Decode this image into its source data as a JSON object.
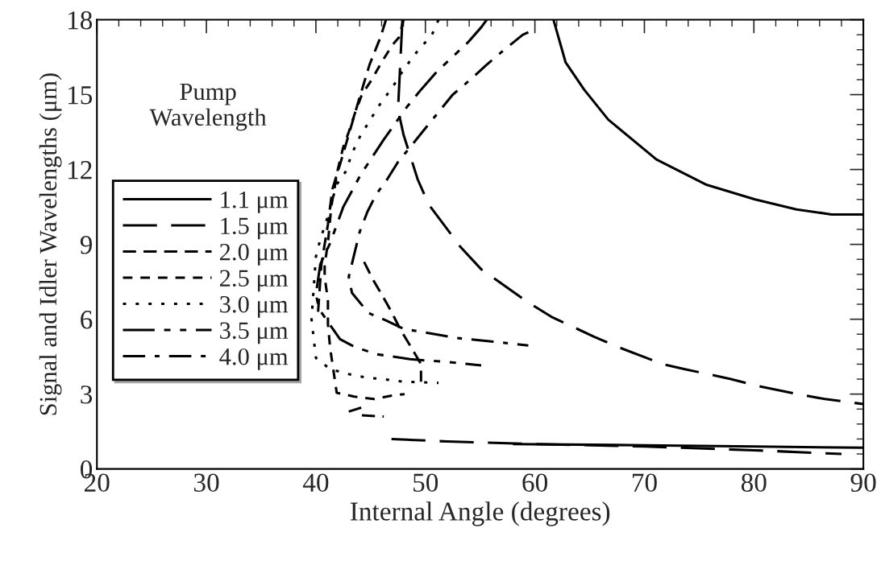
{
  "chart_data": {
    "type": "line",
    "xlabel": "Internal Angle (degrees)",
    "ylabel": "Signal and Idler Wavelengths (μm)",
    "legend_title": "Pump\nWavelength",
    "legend": "left",
    "xlim": [
      20,
      90
    ],
    "ylim": [
      0,
      18
    ],
    "xticks": [
      20,
      30,
      40,
      50,
      60,
      70,
      80,
      90
    ],
    "yticks": [
      0,
      3,
      6,
      9,
      12,
      15,
      18
    ],
    "grid": false,
    "marker": "none",
    "series": [
      {
        "name": "1.1 μm",
        "color": "#000000",
        "line_style": "solid",
        "x": [
          61.7,
          62.8,
          64.5,
          66.7,
          71.1,
          75.6,
          80.1,
          83.9,
          87.1,
          90,
          null,
          58,
          70,
          80,
          90
        ],
        "values": [
          18,
          16.3,
          15.2,
          14.0,
          12.4,
          11.4,
          10.8,
          10.4,
          10.2,
          10.2,
          null,
          1.0,
          0.95,
          0.9,
          0.85
        ]
      },
      {
        "name": "1.5 μm",
        "color": "#000000",
        "line_style": "longdash",
        "x": [
          47.9,
          47.5,
          48.0,
          49.3,
          50.3,
          53.2,
          55.1,
          59.3,
          61.5,
          65.4,
          67.5,
          71.7,
          73.7,
          77.9,
          80.1,
          84.0,
          86.5,
          90,
          null,
          46.9,
          52,
          60,
          70,
          80,
          88
        ],
        "values": [
          18,
          14.4,
          13.4,
          11.6,
          10.6,
          8.9,
          8.0,
          6.7,
          6.1,
          5.3,
          4.9,
          4.2,
          4.0,
          3.6,
          3.35,
          3.0,
          2.8,
          2.6,
          null,
          1.2,
          1.1,
          1.0,
          0.9,
          0.75,
          0.6
        ]
      },
      {
        "name": "2.0 μm",
        "color": "#000000",
        "line_style": "dashed",
        "x": [
          46.4,
          45.9,
          44.9,
          44.0,
          43.0,
          42.2,
          41.5,
          41.1,
          40.5,
          40.2,
          null,
          44.4,
          45.2,
          46.0,
          46.9,
          47.7,
          48.8,
          49.6,
          49.6,
          null,
          43.0,
          44.8,
          null,
          44.2,
          46.2
        ],
        "values": [
          18,
          17.3,
          16.2,
          14.9,
          13.4,
          12.2,
          11.2,
          9.8,
          8.2,
          6.3,
          null,
          8.3,
          7.6,
          7.0,
          6.3,
          5.6,
          4.8,
          4.2,
          3.5,
          null,
          2.3,
          2.55,
          null,
          2.15,
          2.1
        ]
      },
      {
        "name": "2.5 μm",
        "color": "#000000",
        "line_style": "shortdash",
        "x": [
          48.0,
          47.6,
          47.0,
          46.0,
          45.1,
          44.2,
          43.6,
          43.0,
          42.5,
          42.0,
          41.4,
          41.1,
          40.8,
          40.8,
          41.1,
          41.1,
          41.3,
          41.9,
          43.5,
          45.3,
          47.1,
          48.1
        ],
        "values": [
          18,
          17.3,
          17.0,
          16.3,
          15.6,
          15.0,
          14.3,
          13.5,
          12.9,
          12.0,
          10.5,
          9.05,
          8.2,
          7.7,
          6.75,
          5.8,
          4.85,
          3.05,
          2.9,
          2.8,
          2.95,
          3.0
        ]
      },
      {
        "name": "3.0 μm",
        "color": "#000000",
        "line_style": "dotted",
        "x": [
          51.2,
          50.6,
          49.2,
          48.0,
          47.0,
          45.9,
          44.9,
          44.0,
          43.3,
          42.7,
          41.9,
          40.9,
          40.4,
          40.0,
          39.6,
          40.0,
          41.3,
          43.0,
          44.7,
          46.2,
          47.9,
          51.2
        ],
        "values": [
          18,
          17.4,
          16.7,
          16.0,
          15.3,
          14.65,
          13.95,
          13.3,
          12.65,
          11.9,
          11.4,
          9.85,
          9.2,
          8.5,
          6.0,
          4.45,
          4.0,
          3.8,
          3.65,
          3.6,
          3.5,
          3.45
        ]
      },
      {
        "name": "3.5 μm",
        "color": "#000000",
        "line_style": "longdashdotdot",
        "x": [
          55.6,
          55.1,
          53.9,
          51.0,
          49.6,
          48.3,
          46.2,
          44.1,
          42.5,
          41.3,
          40.4,
          40.0,
          40.3,
          42.2,
          43.5,
          45.5,
          48.6,
          49.9,
          51.8,
          55.1
        ],
        "values": [
          18,
          17.7,
          17.1,
          15.9,
          15.2,
          14.5,
          13.2,
          11.8,
          10.5,
          9.05,
          8.2,
          7.0,
          6.4,
          5.2,
          4.9,
          4.6,
          4.4,
          4.35,
          4.3,
          4.15
        ]
      },
      {
        "name": "4.0 μm",
        "color": "#000000",
        "line_style": "dashdot",
        "x": [
          59.4,
          58.9,
          57.2,
          55.6,
          54.1,
          52.5,
          51.2,
          49.9,
          48.8,
          47.5,
          46.5,
          45.5,
          44.7,
          44.0,
          43.0,
          43.3,
          44.8,
          46.4,
          48.1,
          49.6,
          52.8,
          56.2,
          59.4
        ],
        "values": [
          17.5,
          17.4,
          16.8,
          16.2,
          15.6,
          15.0,
          14.3,
          13.6,
          13.0,
          12.3,
          11.6,
          11.0,
          10.3,
          9.5,
          7.7,
          7.05,
          6.25,
          5.95,
          5.6,
          5.5,
          5.25,
          5.1,
          4.95
        ]
      }
    ]
  }
}
